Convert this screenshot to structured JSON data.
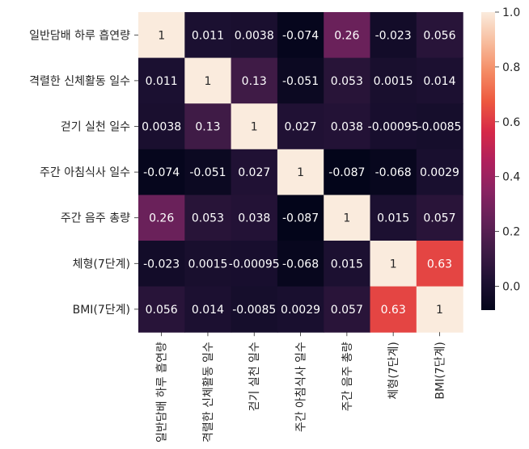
{
  "chart_data": {
    "type": "heatmap",
    "title": "",
    "xlabel": "",
    "ylabel": "",
    "labels": [
      "일반담배 하루 흡연량",
      "격렬한 신체활동 일수",
      "걷기 실천 일수",
      "주간 아침식사 일수",
      "주간 음주 총량",
      "체형(7단계)",
      "BMI(7단계)"
    ],
    "values": [
      [
        1,
        0.011,
        0.0038,
        -0.074,
        0.26,
        -0.023,
        0.056
      ],
      [
        0.011,
        1,
        0.13,
        -0.051,
        0.053,
        0.0015,
        0.014
      ],
      [
        0.0038,
        0.13,
        1,
        0.027,
        0.038,
        -0.00095,
        -0.0085
      ],
      [
        -0.074,
        -0.051,
        0.027,
        1,
        -0.087,
        -0.068,
        0.0029
      ],
      [
        0.26,
        0.053,
        0.038,
        -0.087,
        1,
        0.015,
        0.057
      ],
      [
        -0.023,
        0.0015,
        -0.00095,
        -0.068,
        0.015,
        1,
        0.63
      ],
      [
        0.056,
        0.014,
        -0.0085,
        0.0029,
        0.057,
        0.63,
        1
      ]
    ],
    "annotations": [
      [
        "1",
        "0.011",
        "0.0038",
        "-0.074",
        "0.26",
        "-0.023",
        "0.056"
      ],
      [
        "0.011",
        "1",
        "0.13",
        "-0.051",
        "0.053",
        "0.0015",
        "0.014"
      ],
      [
        "0.0038",
        "0.13",
        "1",
        "0.027",
        "0.038",
        "-0.00095",
        "-0.0085"
      ],
      [
        "-0.074",
        "-0.051",
        "0.027",
        "1",
        "-0.087",
        "-0.068",
        "0.0029"
      ],
      [
        "0.26",
        "0.053",
        "0.038",
        "-0.087",
        "1",
        "0.015",
        "0.057"
      ],
      [
        "-0.023",
        "0.0015",
        "-0.00095",
        "-0.068",
        "0.015",
        "1",
        "0.63"
      ],
      [
        "0.056",
        "0.014",
        "-0.0085",
        "0.0029",
        "0.057",
        "0.63",
        "1"
      ]
    ],
    "colorbar": {
      "range": [
        -0.087,
        1
      ],
      "ticks": [
        "0.0",
        "0.2",
        "0.4",
        "0.6",
        "0.8",
        "1.0"
      ],
      "tick_values": [
        0,
        0.2,
        0.4,
        0.6,
        0.8,
        1.0
      ],
      "colormap": "rocket"
    }
  }
}
